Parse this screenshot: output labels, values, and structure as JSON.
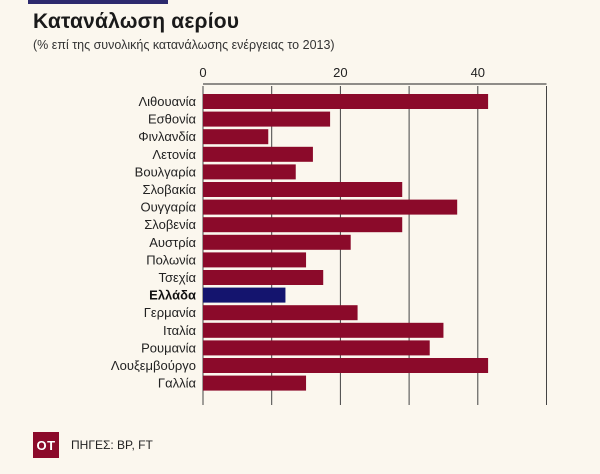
{
  "header": {
    "title": "Κατανάλωση αερίου",
    "subtitle": "(% επί της συνολικής κατανάλωσης ενέργειας το 2013)"
  },
  "footer": {
    "logo_text": "OT",
    "source": "ΠΗΓΕΣ: BP, FT"
  },
  "colors": {
    "bar": "#8b0a2a",
    "highlight": "#14146e",
    "grid": "#444444",
    "accent": "#2d2a6e"
  },
  "chart_data": {
    "type": "bar",
    "orientation": "horizontal",
    "title": "Κατανάλωση αερίου",
    "subtitle": "(% επί της συνολικής κατανάλωσης ενέργειας το 2013)",
    "categories": [
      "Λιθουανία",
      "Εσθονία",
      "Φινλανδία",
      "Λετονία",
      "Βουλγαρία",
      "Σλοβακία",
      "Ουγγαρία",
      "Σλοβενία",
      "Αυστρία",
      "Πολωνία",
      "Τσεχία",
      "Ελλάδα",
      "Γερμανία",
      "Ιταλία",
      "Ρουμανία",
      "Λουξεμβούργο",
      "Γαλλία"
    ],
    "values": [
      41.5,
      18.5,
      9.5,
      16,
      13.5,
      29,
      37,
      29,
      21.5,
      15,
      17.5,
      12,
      22.5,
      35,
      33,
      41.5,
      15
    ],
    "highlight": "Ελλάδα",
    "xticks": [
      0,
      20,
      40
    ],
    "xlim": [
      0,
      50
    ],
    "grid": true
  }
}
